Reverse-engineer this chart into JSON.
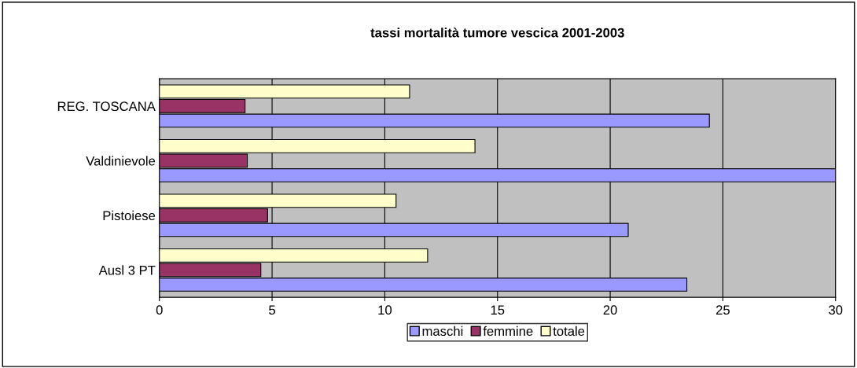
{
  "chart_data": {
    "type": "bar",
    "orientation": "horizontal",
    "title": "tassi mortalità tumore vescica 2001-2003",
    "categories": [
      "REG. TOSCANA",
      "Valdinievole",
      "Pistoiese",
      "Ausl 3 PT"
    ],
    "series": [
      {
        "name": "maschi",
        "color": "#9999ff",
        "values": [
          24.4,
          30.0,
          20.8,
          23.4
        ]
      },
      {
        "name": "femmine",
        "color": "#993366",
        "values": [
          3.8,
          3.9,
          4.8,
          4.5
        ]
      },
      {
        "name": "totale",
        "color": "#ffffcc",
        "values": [
          11.1,
          14.0,
          10.5,
          11.9
        ]
      }
    ],
    "xlim": [
      0,
      30
    ],
    "xticks": [
      0,
      5,
      10,
      15,
      20,
      25,
      30
    ],
    "grid": "x",
    "legend": "bottom"
  }
}
